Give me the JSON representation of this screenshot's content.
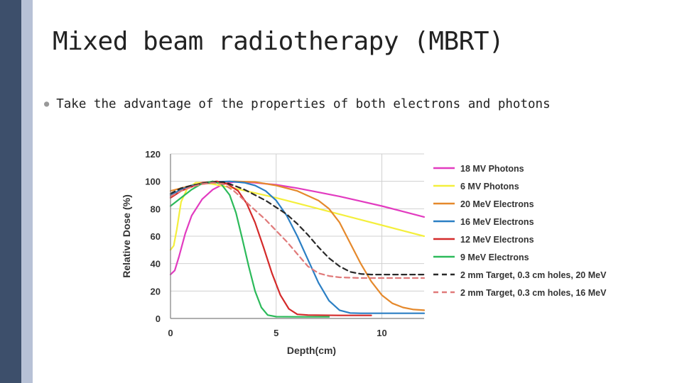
{
  "slide": {
    "title": "Mixed beam radiotherapy (MBRT)",
    "bullet": "Take the advantage of the properties of both electrons and photons"
  },
  "chart_data": {
    "type": "line",
    "title": "",
    "xlabel": "Depth(cm)",
    "ylabel": "Relative Dose (%)",
    "xlim": [
      0,
      12
    ],
    "ylim": [
      0,
      120
    ],
    "x_ticks": [
      0,
      5,
      10
    ],
    "y_ticks": [
      0,
      20,
      40,
      60,
      80,
      100,
      120
    ],
    "grid": true,
    "legend_position": "right",
    "series": [
      {
        "name": "18 MV Photons",
        "color": "#e23bc0",
        "style": "solid",
        "points": [
          [
            0,
            32
          ],
          [
            0.2,
            35
          ],
          [
            0.4,
            45
          ],
          [
            0.7,
            62
          ],
          [
            1,
            75
          ],
          [
            1.5,
            87
          ],
          [
            2,
            94
          ],
          [
            2.5,
            98
          ],
          [
            3,
            99.5
          ],
          [
            3.5,
            99.5
          ],
          [
            4,
            99
          ],
          [
            5,
            97.5
          ],
          [
            6,
            95
          ],
          [
            7,
            92
          ],
          [
            8,
            89
          ],
          [
            9,
            85.5
          ],
          [
            10,
            82
          ],
          [
            11,
            78
          ],
          [
            12,
            74
          ]
        ]
      },
      {
        "name": "6 MV Photons",
        "color": "#f4ef3c",
        "style": "solid",
        "points": [
          [
            0,
            50
          ],
          [
            0.15,
            53
          ],
          [
            0.3,
            65
          ],
          [
            0.5,
            85
          ],
          [
            0.8,
            95
          ],
          [
            1.2,
            99
          ],
          [
            1.6,
            99
          ],
          [
            2,
            98
          ],
          [
            3,
            95
          ],
          [
            4,
            91.5
          ],
          [
            5,
            88
          ],
          [
            6,
            84
          ],
          [
            7,
            80
          ],
          [
            8,
            76
          ],
          [
            9,
            72
          ],
          [
            10,
            68
          ],
          [
            11,
            64
          ],
          [
            12,
            60
          ]
        ]
      },
      {
        "name": "20 MeV Electrons",
        "color": "#e5892c",
        "style": "solid",
        "points": [
          [
            0,
            93
          ],
          [
            0.5,
            95
          ],
          [
            1,
            97
          ],
          [
            2,
            99
          ],
          [
            3,
            100
          ],
          [
            4,
            99.5
          ],
          [
            5,
            97
          ],
          [
            6,
            93
          ],
          [
            7,
            86
          ],
          [
            7.5,
            80
          ],
          [
            8,
            70
          ],
          [
            8.5,
            55
          ],
          [
            9,
            40
          ],
          [
            9.5,
            27
          ],
          [
            10,
            17
          ],
          [
            10.5,
            11
          ],
          [
            11,
            8
          ],
          [
            11.5,
            6.5
          ],
          [
            12,
            6
          ]
        ]
      },
      {
        "name": "16 MeV Electrons",
        "color": "#2b7fc4",
        "style": "solid",
        "points": [
          [
            0,
            90
          ],
          [
            0.5,
            94
          ],
          [
            1,
            97
          ],
          [
            2,
            99.5
          ],
          [
            2.8,
            100
          ],
          [
            3.5,
            99
          ],
          [
            4,
            97
          ],
          [
            4.5,
            93
          ],
          [
            5,
            86
          ],
          [
            5.5,
            75
          ],
          [
            6,
            60
          ],
          [
            6.5,
            43
          ],
          [
            7,
            26
          ],
          [
            7.5,
            13
          ],
          [
            8,
            6
          ],
          [
            8.5,
            4
          ],
          [
            9,
            3.8
          ],
          [
            10,
            3.8
          ],
          [
            12,
            3.8
          ]
        ]
      },
      {
        "name": "12 MeV Electrons",
        "color": "#d42a2a",
        "style": "solid",
        "points": [
          [
            0,
            88
          ],
          [
            0.5,
            93
          ],
          [
            1,
            96
          ],
          [
            1.5,
            99
          ],
          [
            2.2,
            100
          ],
          [
            2.7,
            98
          ],
          [
            3.2,
            93
          ],
          [
            3.6,
            84
          ],
          [
            4,
            70
          ],
          [
            4.4,
            52
          ],
          [
            4.8,
            33
          ],
          [
            5.2,
            17
          ],
          [
            5.6,
            7
          ],
          [
            6,
            3
          ],
          [
            6.5,
            2.5
          ],
          [
            8,
            2.2
          ],
          [
            9.5,
            2.2
          ]
        ]
      },
      {
        "name": "9 MeV Electrons",
        "color": "#2cba5a",
        "style": "solid",
        "points": [
          [
            0,
            82
          ],
          [
            0.5,
            88
          ],
          [
            1,
            94
          ],
          [
            1.5,
            98.5
          ],
          [
            2,
            100
          ],
          [
            2.4,
            98
          ],
          [
            2.8,
            90
          ],
          [
            3.1,
            77
          ],
          [
            3.4,
            58
          ],
          [
            3.7,
            38
          ],
          [
            4,
            20
          ],
          [
            4.3,
            8
          ],
          [
            4.6,
            2.5
          ],
          [
            5,
            1.3
          ],
          [
            6,
            1.2
          ],
          [
            7.5,
            1.2
          ]
        ]
      },
      {
        "name": "2 mm Target, 0.3 cm holes, 20 MeV",
        "color": "#2a2a2a",
        "style": "dashed",
        "points": [
          [
            0,
            91
          ],
          [
            0.5,
            95
          ],
          [
            1,
            97
          ],
          [
            1.5,
            98.5
          ],
          [
            2,
            99.5
          ],
          [
            2.5,
            99.5
          ],
          [
            3,
            97
          ],
          [
            3.5,
            94
          ],
          [
            4,
            90
          ],
          [
            4.5,
            86
          ],
          [
            5,
            81
          ],
          [
            5.5,
            76
          ],
          [
            6,
            69
          ],
          [
            6.5,
            61
          ],
          [
            7,
            52
          ],
          [
            7.5,
            44
          ],
          [
            8,
            38
          ],
          [
            8.5,
            34
          ],
          [
            9,
            32.5
          ],
          [
            9.5,
            32
          ],
          [
            10,
            32
          ],
          [
            12,
            32
          ]
        ]
      },
      {
        "name": "2 mm Target, 0.3 cm holes, 16 MeV",
        "color": "#e07a7a",
        "style": "dashed",
        "points": [
          [
            0,
            89
          ],
          [
            0.5,
            93
          ],
          [
            1,
            96
          ],
          [
            1.5,
            98
          ],
          [
            2,
            99
          ],
          [
            2.5,
            98
          ],
          [
            3,
            93
          ],
          [
            3.5,
            86
          ],
          [
            4,
            79
          ],
          [
            4.5,
            72
          ],
          [
            5,
            64
          ],
          [
            5.5,
            56
          ],
          [
            6,
            47
          ],
          [
            6.5,
            38
          ],
          [
            7,
            33
          ],
          [
            7.5,
            31
          ],
          [
            8,
            30
          ],
          [
            9,
            29.5
          ],
          [
            10,
            29.5
          ],
          [
            12,
            29.5
          ]
        ]
      }
    ]
  }
}
